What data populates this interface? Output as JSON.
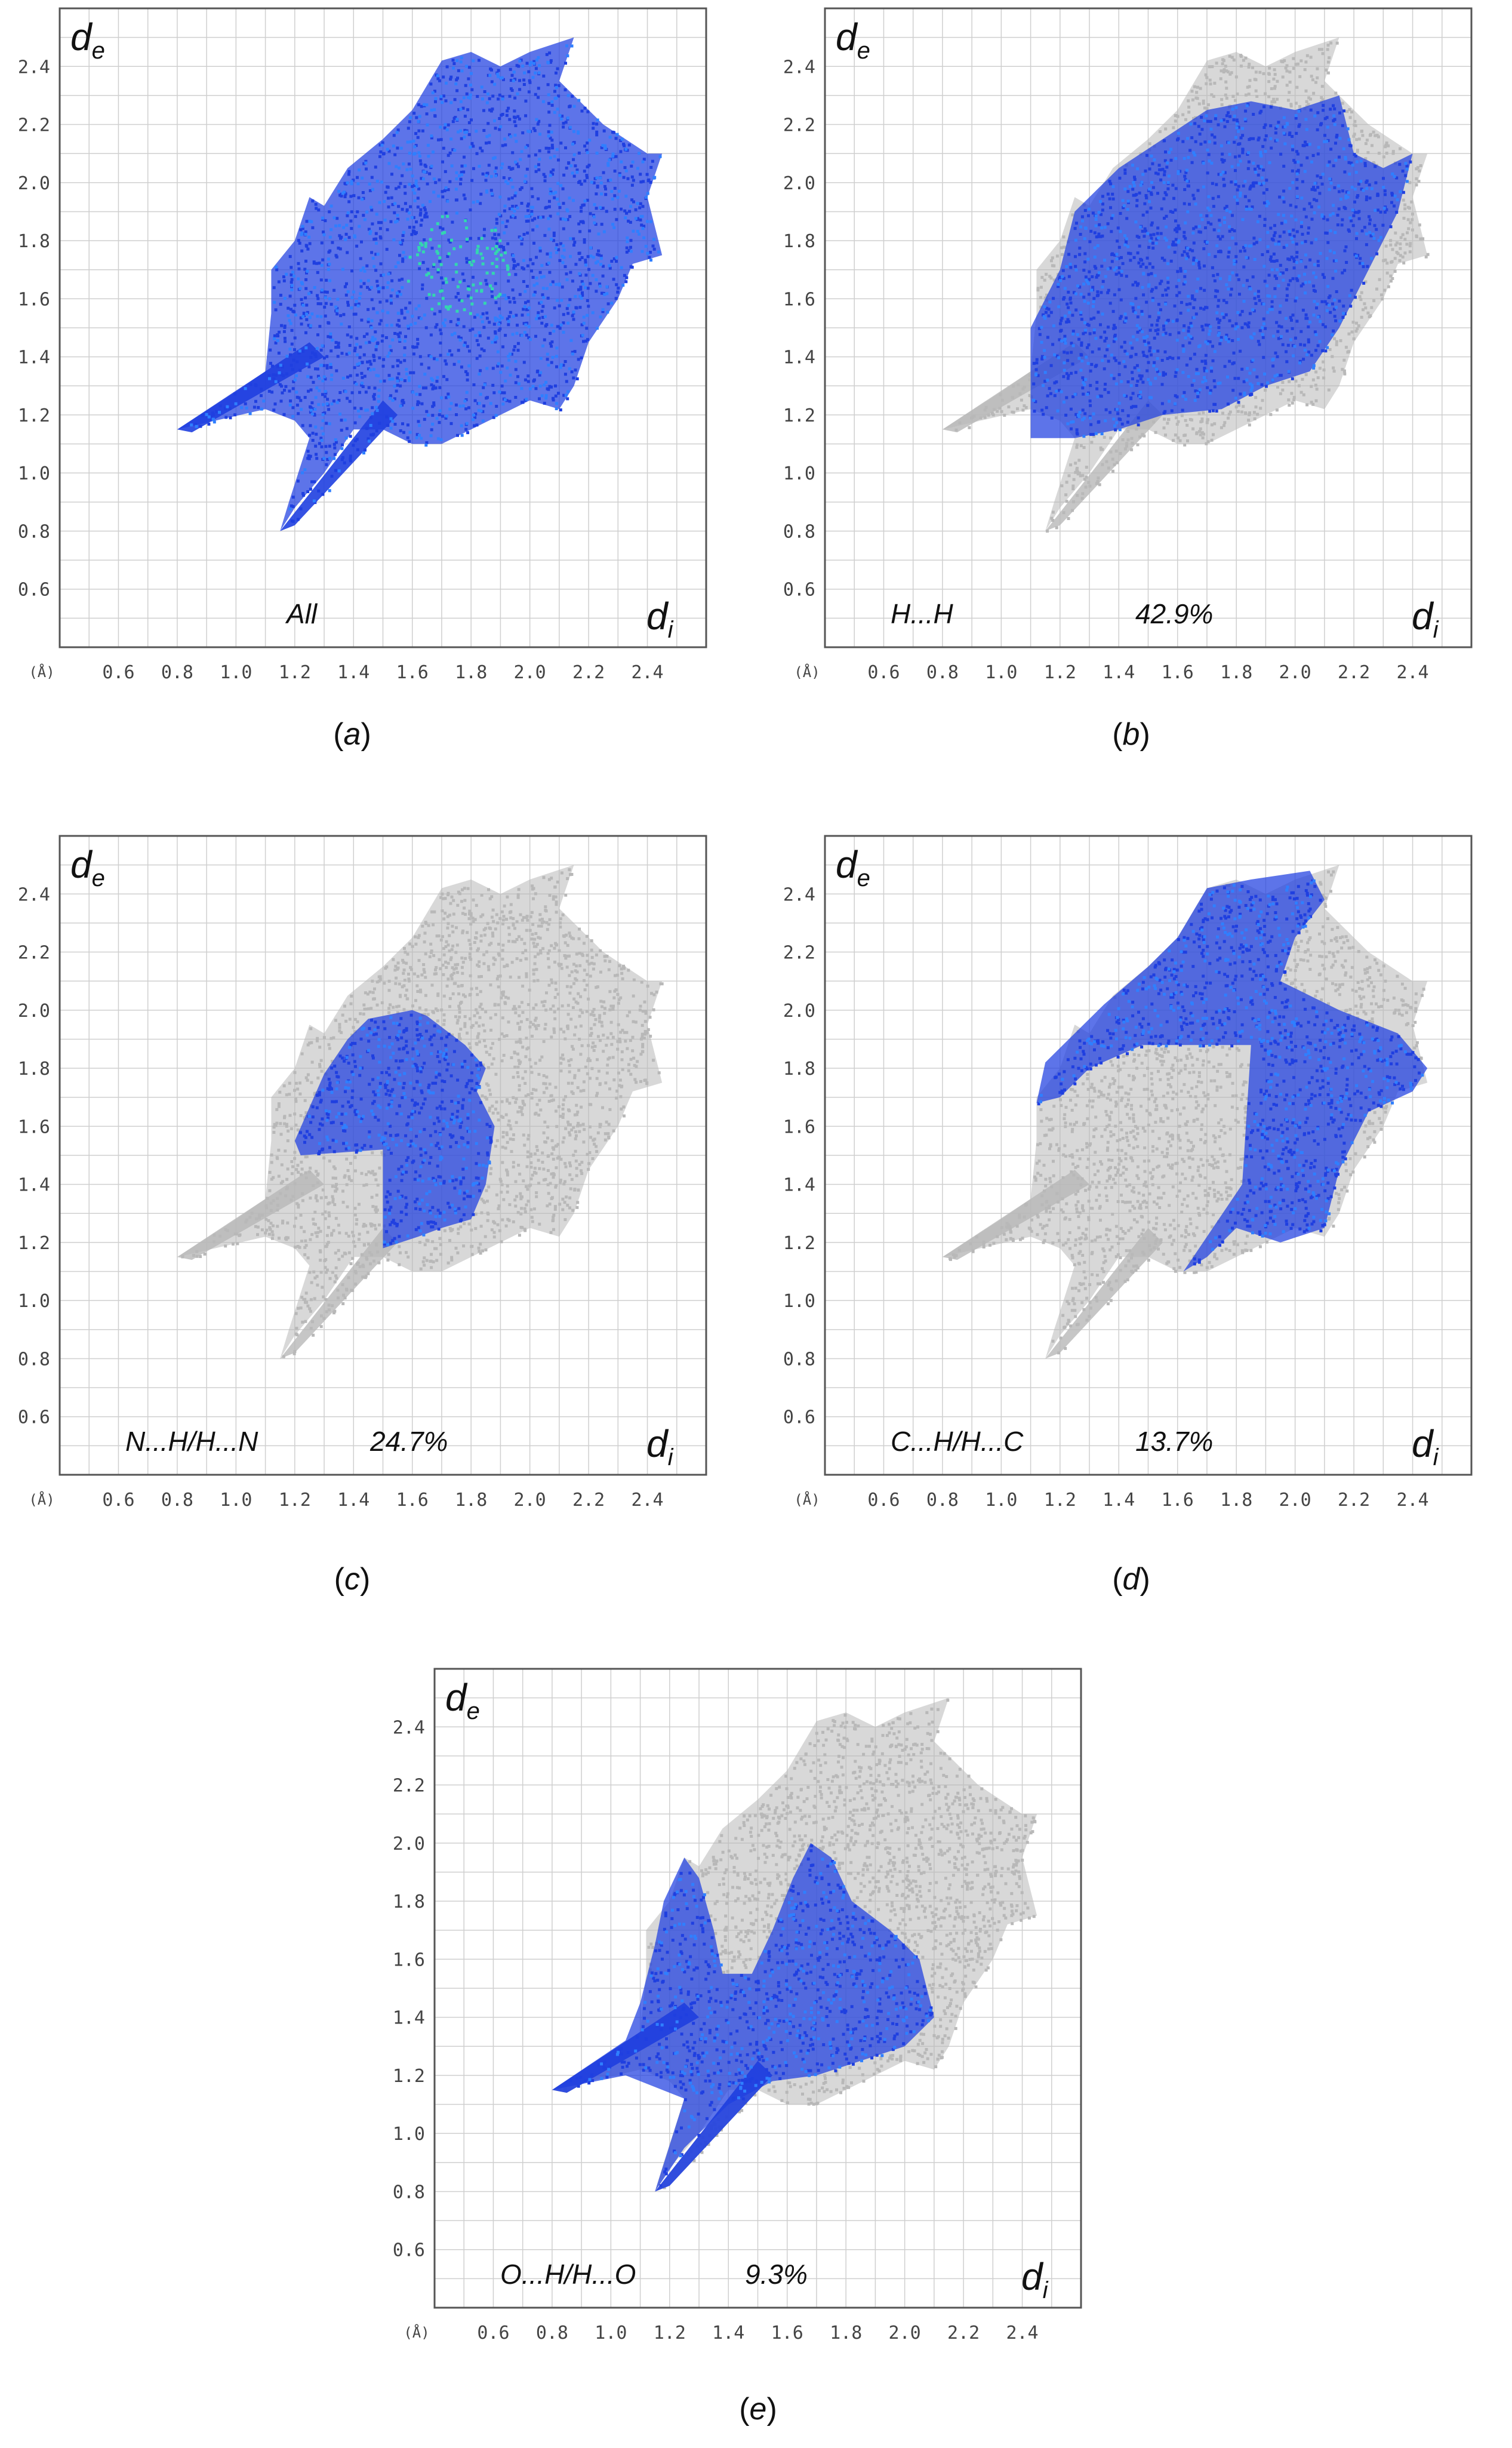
{
  "colors": {
    "contact_points": "#1f3fe0",
    "contact_points_light": "#2f7fff",
    "contact_points_hot": "#33d6b0",
    "background_points": "#b8b8b8",
    "grid": "#cfcfcf",
    "frame": "#555555"
  },
  "axis": {
    "unit_label": "(Å)",
    "x_label_main": "d",
    "x_label_sub": "i",
    "y_label_main": "d",
    "y_label_sub": "e",
    "xlim": [
      0.4,
      2.6
    ],
    "ylim": [
      0.4,
      2.6
    ],
    "x_ticks": [
      "0.6",
      "0.8",
      "1.0",
      "1.2",
      "1.4",
      "1.6",
      "1.8",
      "2.0",
      "2.2",
      "2.4"
    ],
    "y_ticks": [
      "0.6",
      "0.8",
      "1.0",
      "1.2",
      "1.4",
      "1.6",
      "1.8",
      "2.0",
      "2.2",
      "2.4"
    ],
    "grid": true
  },
  "chart_data": [
    {
      "type": "scatter",
      "panel": "a",
      "caption_letter": "a",
      "contact_label": "All",
      "percent": "",
      "show_background": false,
      "highlight_region": "full"
    },
    {
      "type": "scatter",
      "panel": "b",
      "caption_letter": "b",
      "contact_label": "H...H",
      "percent": "42.9%",
      "percent_value": 42.9,
      "show_background": true,
      "highlight_region": "hh"
    },
    {
      "type": "scatter",
      "panel": "c",
      "caption_letter": "c",
      "contact_label": "N...H/H...N",
      "percent": "24.7%",
      "percent_value": 24.7,
      "show_background": true,
      "highlight_region": "nh"
    },
    {
      "type": "scatter",
      "panel": "d",
      "caption_letter": "d",
      "contact_label": "C...H/H...C",
      "percent": "13.7%",
      "percent_value": 13.7,
      "show_background": true,
      "highlight_region": "ch"
    },
    {
      "type": "scatter",
      "panel": "e",
      "caption_letter": "e",
      "contact_label": "O...H/H...O",
      "percent": "9.3%",
      "percent_value": 9.3,
      "show_background": true,
      "highlight_region": "oh"
    }
  ]
}
